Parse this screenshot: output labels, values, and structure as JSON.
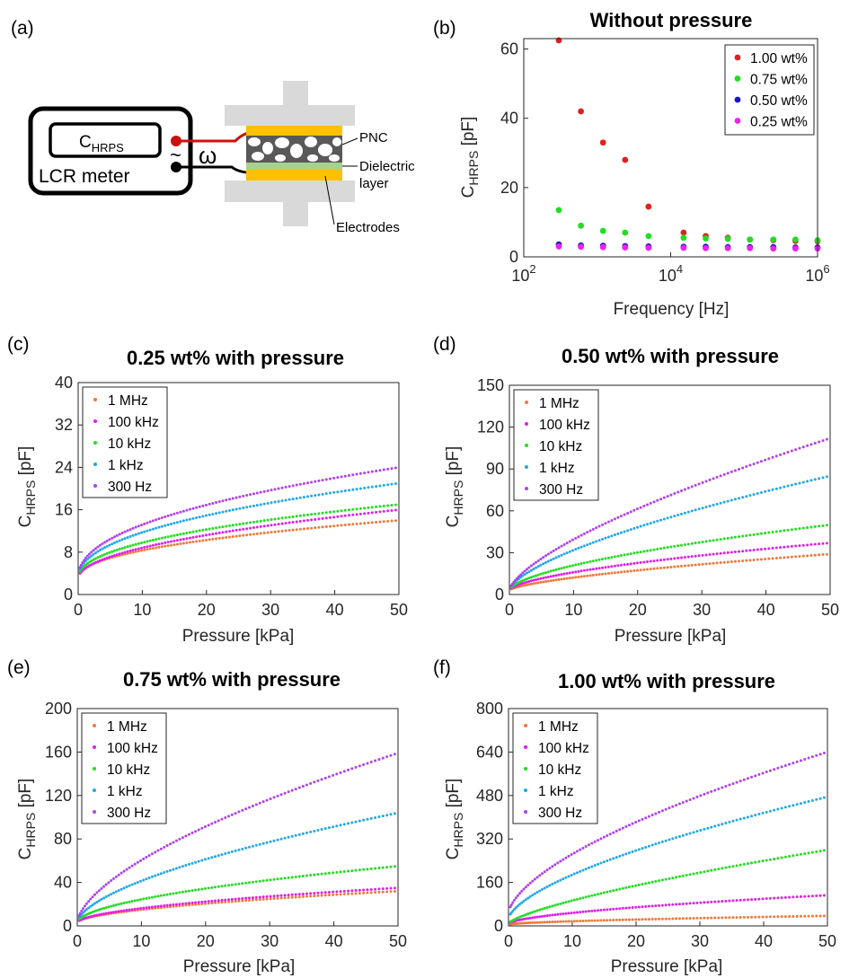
{
  "panel_tags": [
    "(a)",
    "(b)",
    "(c)",
    "(d)",
    "(e)",
    "(f)"
  ],
  "diagram": {
    "component_label": "C",
    "component_subscript": "HRPS",
    "instrument_label": "LCR meter",
    "ac_symbol": "~",
    "omega_symbol": "ω",
    "pnc_label": "PNC",
    "dielectric_label_1": "Dielectric",
    "dielectric_label_2": "layer",
    "electrodes_label": "Electrodes"
  },
  "colors": {
    "s1MHz": "#f0793a",
    "s100kHz": "#e020e8",
    "s10kHz": "#22dd22",
    "s1kHz": "#22a8e8",
    "s300Hz": "#b040ee",
    "w100": "#e02020",
    "w075": "#22dd22",
    "w050": "#1515cc",
    "w025": "#ee22ee",
    "wire_red": "#cc1111",
    "electrode": "#ffc000",
    "dielectric": "#a9d18e",
    "clamp": "#d9d9d9"
  },
  "chart_data": [
    {
      "id": "b",
      "type": "scatter",
      "title": "Without pressure",
      "xlabel": "Frequency  [Hz]",
      "ylabel_main": "C",
      "ylabel_sub": "HRPS",
      "ylabel_unit": " [pF]",
      "xscale": "log",
      "xlim": [
        100,
        1000000
      ],
      "ylim": [
        0,
        63
      ],
      "xticks": [
        100,
        10000,
        1000000
      ],
      "xtick_base": "10",
      "xtick_exp": [
        "2",
        "4",
        "6"
      ],
      "yticks": [
        0,
        20,
        40,
        60
      ],
      "ytick_labels": [
        "0",
        "20",
        "40",
        "60"
      ],
      "grid": false,
      "legend_position": "top-right",
      "x": [
        300,
        600,
        1200,
        2400,
        5000,
        15000,
        30000,
        60000,
        120000,
        250000,
        500000,
        1000000
      ],
      "series": [
        {
          "name": "1.00 wt%",
          "color_key": "w100",
          "values": [
            62.5,
            42,
            33,
            28,
            14.5,
            7,
            6,
            5.5,
            5,
            4.8,
            4.6,
            4.5
          ]
        },
        {
          "name": "0.75 wt%",
          "color_key": "w075",
          "values": [
            13.5,
            9,
            7.5,
            7,
            6,
            5.5,
            5.3,
            5.2,
            5,
            5,
            5,
            4.8
          ]
        },
        {
          "name": "0.50 wt%",
          "color_key": "w050",
          "values": [
            3.6,
            3.3,
            3.2,
            3.1,
            3.0,
            2.9,
            2.9,
            2.8,
            2.8,
            2.8,
            2.7,
            2.7
          ]
        },
        {
          "name": "0.25 wt%",
          "color_key": "w025",
          "values": [
            3.0,
            2.9,
            2.8,
            2.7,
            2.6,
            2.6,
            2.5,
            2.5,
            2.5,
            2.4,
            2.4,
            2.4
          ]
        }
      ]
    },
    {
      "id": "c",
      "type": "scatter",
      "title": "0.25 wt% with pressure",
      "xlabel": "Pressure [kPa]",
      "ylabel_main": "C",
      "ylabel_sub": "HRPS",
      "ylabel_unit": " [pF]",
      "xlim": [
        0,
        50
      ],
      "ylim": [
        0,
        40
      ],
      "xticks": [
        0,
        10,
        20,
        30,
        40,
        50
      ],
      "xtick_labels": [
        "0",
        "10",
        "20",
        "30",
        "40",
        "50"
      ],
      "yticks": [
        0,
        8,
        16,
        24,
        32,
        40
      ],
      "ytick_labels": [
        "0",
        "8",
        "16",
        "24",
        "32",
        "40"
      ],
      "grid": false,
      "legend_position": "top-left",
      "curve_model": "y = c0 + k * x^p, x from 0 to 50 kPa",
      "series": [
        {
          "name": "1 MHz",
          "color_key": "s1MHz",
          "c0": 3,
          "end": 14,
          "p": 0.45
        },
        {
          "name": "100 kHz",
          "color_key": "s100kHz",
          "c0": 3,
          "end": 16,
          "p": 0.5
        },
        {
          "name": "10 kHz",
          "color_key": "s10kHz",
          "c0": 3,
          "end": 17,
          "p": 0.45
        },
        {
          "name": "1 kHz",
          "color_key": "s1kHz",
          "c0": 3,
          "end": 21,
          "p": 0.45
        },
        {
          "name": "300 Hz",
          "color_key": "s300Hz",
          "c0": 3,
          "end": 24,
          "p": 0.45
        }
      ]
    },
    {
      "id": "d",
      "type": "scatter",
      "title": "0.50 wt% with pressure",
      "xlabel": "Pressure [kPa]",
      "ylabel_main": "C",
      "ylabel_sub": "HRPS",
      "ylabel_unit": " [pF]",
      "xlim": [
        0,
        50
      ],
      "ylim": [
        0,
        150
      ],
      "xticks": [
        0,
        10,
        20,
        30,
        40,
        50
      ],
      "xtick_labels": [
        "0",
        "10",
        "20",
        "30",
        "40",
        "50"
      ],
      "yticks": [
        0,
        30,
        60,
        90,
        120,
        150
      ],
      "ytick_labels": [
        "0",
        "30",
        "60",
        "90",
        "120",
        "150"
      ],
      "grid": false,
      "legend_position": "top-left",
      "curve_model": "y = c0 + k * x^p, x from 0 to 50 kPa",
      "series": [
        {
          "name": "1 MHz",
          "color_key": "s1MHz",
          "c0": 3,
          "end": 29,
          "p": 0.65
        },
        {
          "name": "100 kHz",
          "color_key": "s100kHz",
          "c0": 3,
          "end": 37,
          "p": 0.6
        },
        {
          "name": "10 kHz",
          "color_key": "s10kHz",
          "c0": 3,
          "end": 50,
          "p": 0.6
        },
        {
          "name": "1 kHz",
          "color_key": "s1kHz",
          "c0": 3,
          "end": 85,
          "p": 0.65
        },
        {
          "name": "300 Hz",
          "color_key": "s300Hz",
          "c0": 3,
          "end": 112,
          "p": 0.68
        }
      ]
    },
    {
      "id": "e",
      "type": "scatter",
      "title": "0.75 wt% with pressure",
      "xlabel": "Pressure [kPa]",
      "ylabel_main": "C",
      "ylabel_sub": "HRPS",
      "ylabel_unit": " [pF]",
      "xlim": [
        0,
        50
      ],
      "ylim": [
        0,
        200
      ],
      "xticks": [
        0,
        10,
        20,
        30,
        40,
        50
      ],
      "xtick_labels": [
        "0",
        "10",
        "20",
        "30",
        "40",
        "50"
      ],
      "yticks": [
        0,
        40,
        80,
        120,
        160,
        200
      ],
      "ytick_labels": [
        "0",
        "40",
        "80",
        "120",
        "160",
        "200"
      ],
      "grid": false,
      "legend_position": "top-left",
      "curve_model": "y = c0 + k * x^p, x from 0 to 50 kPa",
      "series": [
        {
          "name": "1 MHz",
          "color_key": "s1MHz",
          "c0": 3,
          "end": 32,
          "p": 0.55
        },
        {
          "name": "100 kHz",
          "color_key": "s100kHz",
          "c0": 3,
          "end": 35,
          "p": 0.55
        },
        {
          "name": "10 kHz",
          "color_key": "s10kHz",
          "c0": 3,
          "end": 55,
          "p": 0.55
        },
        {
          "name": "1 kHz",
          "color_key": "s1kHz",
          "c0": 3,
          "end": 104,
          "p": 0.6
        },
        {
          "name": "300 Hz",
          "color_key": "s300Hz",
          "c0": 3,
          "end": 159,
          "p": 0.62
        }
      ]
    },
    {
      "id": "f",
      "type": "scatter",
      "title": "1.00 wt% with pressure",
      "xlabel": "Pressure [kPa]",
      "ylabel_main": "C",
      "ylabel_sub": "HRPS",
      "ylabel_unit": " [pF]",
      "xlim": [
        0,
        50
      ],
      "ylim": [
        0,
        800
      ],
      "xticks": [
        0,
        10,
        20,
        30,
        40,
        50
      ],
      "xtick_labels": [
        "0",
        "10",
        "20",
        "30",
        "40",
        "50"
      ],
      "yticks": [
        0,
        160,
        320,
        480,
        640,
        800
      ],
      "ytick_labels": [
        "0",
        "160",
        "320",
        "480",
        "640",
        "800"
      ],
      "grid": false,
      "legend_position": "top-left",
      "curve_model": "y = c0 + k * x^p, x from 0 to 50 kPa",
      "series": [
        {
          "name": "1 MHz",
          "color_key": "s1MHz",
          "c0": 5,
          "end": 37,
          "p": 0.6
        },
        {
          "name": "100 kHz",
          "color_key": "s100kHz",
          "c0": 8,
          "end": 113,
          "p": 0.6
        },
        {
          "name": "10 kHz",
          "color_key": "s10kHz",
          "c0": 8,
          "end": 280,
          "p": 0.72
        },
        {
          "name": "1 kHz",
          "color_key": "s1kHz",
          "c0": 25,
          "end": 475,
          "p": 0.63
        },
        {
          "name": "300 Hz",
          "color_key": "s300Hz",
          "c0": 45,
          "end": 640,
          "p": 0.62
        }
      ]
    }
  ]
}
